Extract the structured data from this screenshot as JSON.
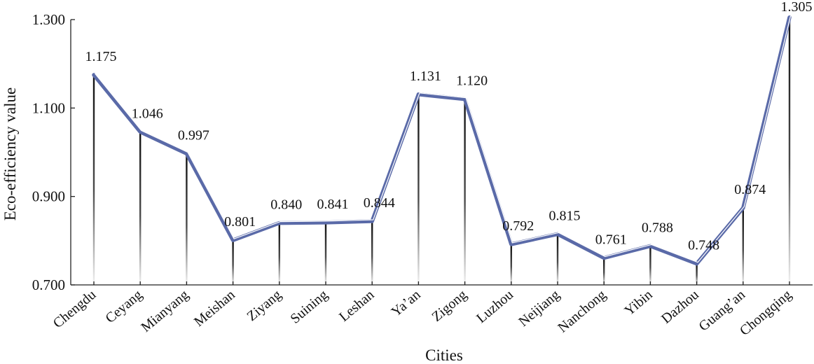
{
  "chart_data": {
    "type": "line",
    "title": "",
    "xlabel": "Cities",
    "ylabel": "Eco-efficiency value",
    "categories": [
      "Chengdu",
      "Ceyang",
      "Mianyang",
      "Meishan",
      "Ziyang",
      "Suining",
      "Leshan",
      "Ya’an",
      "Zigong",
      "Luzhou",
      "Neijiang",
      "Nanchong",
      "Yibin",
      "Dazhou",
      "Guang’an",
      "Chongqing"
    ],
    "values": [
      1.175,
      1.046,
      0.997,
      0.801,
      0.84,
      0.841,
      0.844,
      1.131,
      1.12,
      0.792,
      0.815,
      0.761,
      0.788,
      0.748,
      0.874,
      1.305
    ],
    "value_labels": [
      "1.175",
      "1.046",
      "0.997",
      "0.801",
      "0.840",
      "0.841",
      "0.844",
      "1.131",
      "1.120",
      "0.792",
      "0.815",
      "0.761",
      "0.788",
      "0.748",
      "0.874",
      "1.305"
    ],
    "ylim": [
      0.7,
      1.3
    ],
    "yticks": [
      0.7,
      0.9,
      1.1,
      1.3
    ],
    "ytick_labels": [
      "0.700",
      "0.900",
      "1.100",
      "1.300"
    ],
    "grid": false,
    "legend": "none",
    "colors": {
      "line": "#5a6aa8",
      "highlight": "#ffffff",
      "drop_line": "#111111",
      "axis": "#222222"
    }
  }
}
